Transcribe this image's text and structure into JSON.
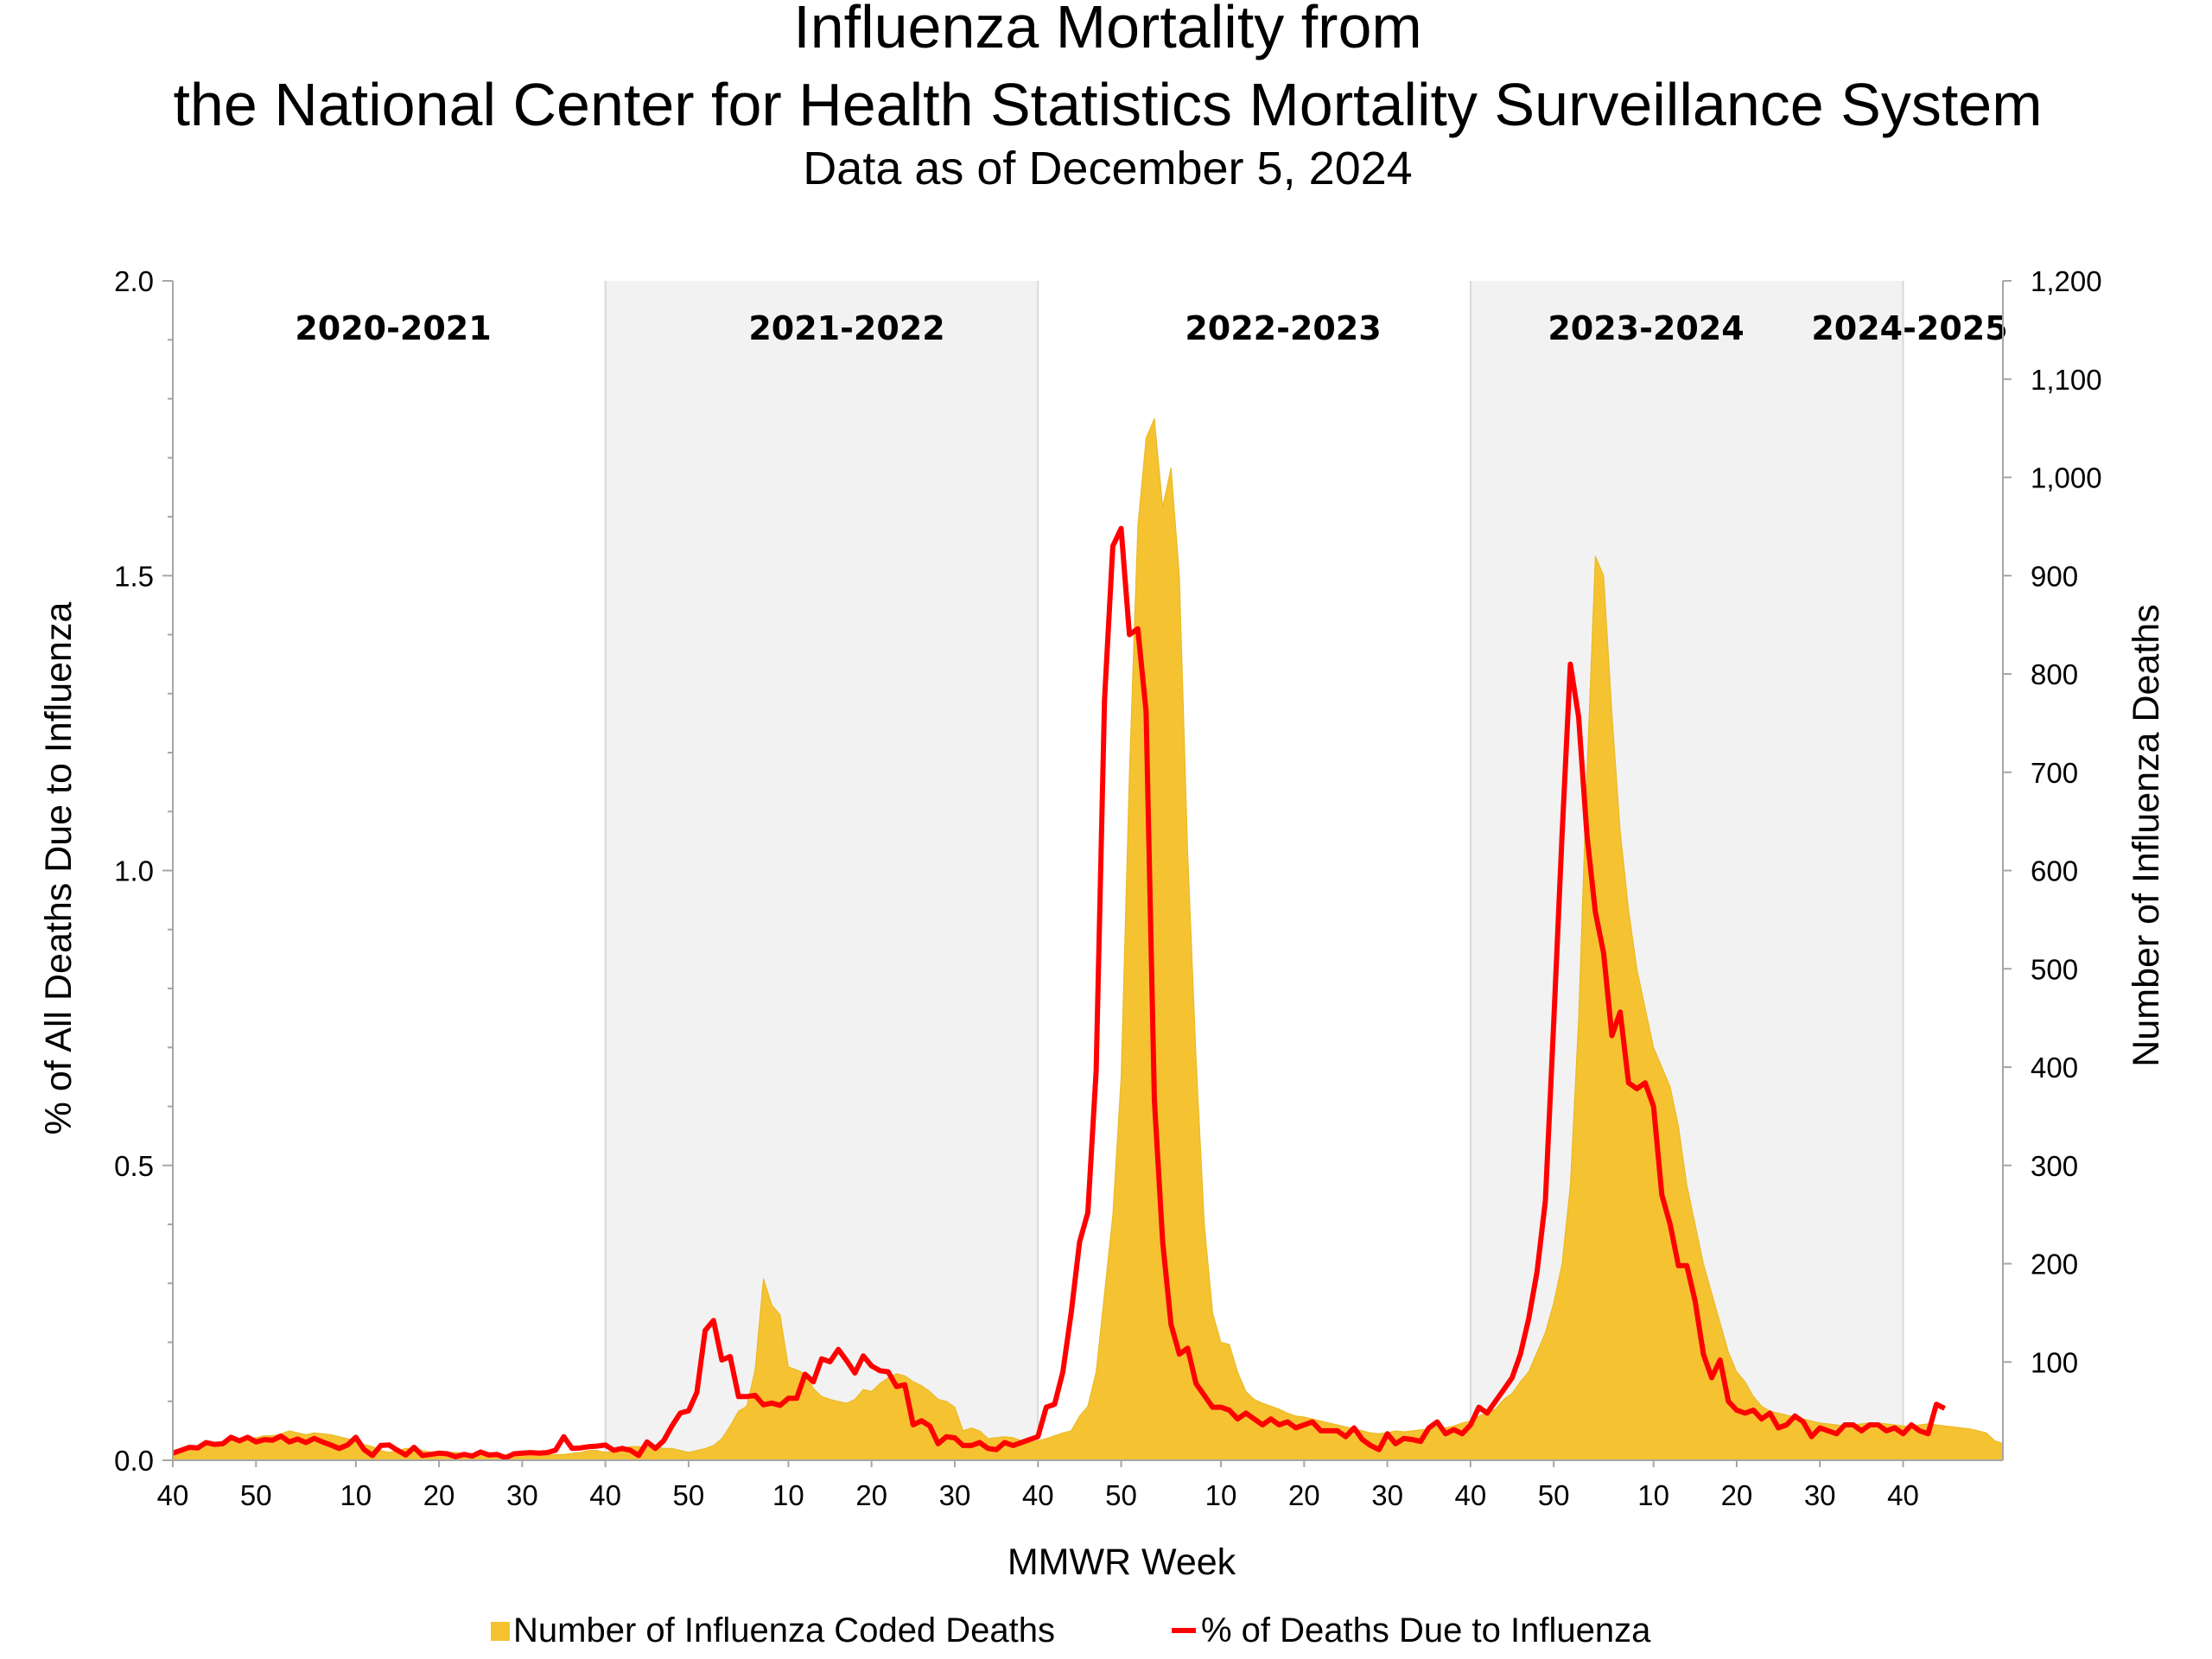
{
  "title": {
    "line1": "Influenza Mortality from",
    "line2": "the National Center for Health Statistics Mortality Surveillance System",
    "subtitle": "Data as of December 5, 2024"
  },
  "colors": {
    "area": "#F5C232",
    "area_edge": "#E8B820",
    "line": "#FF0000",
    "shade": "#F2F2F2",
    "axis": "#A6A6A6"
  },
  "legend": {
    "area_label": "Number of Influenza Coded Deaths",
    "line_label": "% of Deaths Due to Influenza"
  },
  "chart_data": {
    "type": "area",
    "xlabel": "MMWR Week",
    "ylabel_left": "% of All Deaths Due to Influenza",
    "ylabel_right": "Number of Influenza Deaths",
    "ylim_left": [
      0,
      2.0
    ],
    "ylim_right": [
      0,
      1200
    ],
    "yticks_left": [
      "0.0",
      "0.5",
      "1.0",
      "1.5",
      "2.0"
    ],
    "yticks_right": [
      "100",
      "200",
      "300",
      "400",
      "500",
      "600",
      "700",
      "800",
      "900",
      "1,000",
      "1,100",
      "1,200"
    ],
    "x_tick_labels": [
      "40",
      "50",
      "10",
      "20",
      "30",
      "40",
      "50",
      "10",
      "20",
      "30",
      "40",
      "50",
      "10",
      "20",
      "30",
      "40",
      "50",
      "10",
      "20",
      "30",
      "40"
    ],
    "grid": false,
    "legend_position": "bottom",
    "seasons": [
      "2020-2021",
      "2021-2022",
      "2022-2023",
      "2023-2024",
      "2024-2025"
    ],
    "series": [
      {
        "name": "Number of Influenza Coded Deaths",
        "axis": "right",
        "values": [
          8,
          10,
          12,
          13,
          15,
          18,
          18,
          20,
          21,
          22,
          23,
          25,
          25,
          27,
          30,
          28,
          26,
          28,
          27,
          26,
          24,
          22,
          20,
          16,
          14,
          10,
          8,
          10,
          12,
          12,
          10,
          8,
          8,
          8,
          8,
          7,
          7,
          7,
          7,
          6,
          6,
          6,
          6,
          6,
          5,
          5,
          6,
          6,
          7,
          8,
          10,
          10,
          8,
          9,
          12,
          14,
          14,
          13,
          14,
          12,
          12,
          10,
          8,
          10,
          12,
          15,
          22,
          35,
          50,
          55,
          92,
          185,
          158,
          148,
          95,
          92,
          88,
          73,
          65,
          62,
          60,
          58,
          62,
          72,
          70,
          78,
          84,
          88,
          86,
          80,
          76,
          70,
          62,
          60,
          54,
          30,
          33,
          30,
          22,
          23,
          24,
          23,
          20,
          18,
          20,
          22,
          25,
          28,
          30,
          45,
          55,
          90,
          170,
          250,
          390,
          700,
          950,
          1040,
          1060,
          970,
          1010,
          900,
          620,
          410,
          240,
          150,
          120,
          118,
          90,
          70,
          62,
          58,
          55,
          52,
          48,
          45,
          44,
          42,
          40,
          38,
          36,
          34,
          32,
          30,
          28,
          27,
          28,
          30,
          29,
          30,
          31,
          32,
          34,
          33,
          35,
          38,
          40,
          45,
          48,
          52,
          62,
          68,
          80,
          90,
          110,
          130,
          160,
          200,
          280,
          450,
          700,
          920,
          900,
          760,
          640,
          560,
          500,
          460,
          420,
          400,
          380,
          340,
          280,
          240,
          200,
          170,
          140,
          110,
          90,
          80,
          65,
          55,
          50,
          48,
          46,
          44,
          42,
          40,
          38,
          37,
          36,
          35,
          36,
          37,
          38,
          38,
          37,
          36,
          35,
          34,
          36,
          37,
          36,
          35,
          34,
          33,
          32,
          30,
          28,
          20,
          17
        ]
      },
      {
        "name": "% of Deaths Due to Influenza",
        "axis": "left",
        "values": [
          0.012,
          0.017,
          0.022,
          0.021,
          0.03,
          0.027,
          0.028,
          0.039,
          0.033,
          0.039,
          0.031,
          0.035,
          0.034,
          0.041,
          0.031,
          0.036,
          0.03,
          0.037,
          0.031,
          0.026,
          0.02,
          0.026,
          0.039,
          0.018,
          0.008,
          0.025,
          0.026,
          0.017,
          0.009,
          0.022,
          0.008,
          0.01,
          0.012,
          0.011,
          0.006,
          0.01,
          0.007,
          0.014,
          0.009,
          0.01,
          0.004,
          0.011,
          0.012,
          0.013,
          0.012,
          0.013,
          0.017,
          0.04,
          0.02,
          0.021,
          0.023,
          0.024,
          0.026,
          0.017,
          0.02,
          0.017,
          0.008,
          0.031,
          0.02,
          0.033,
          0.058,
          0.08,
          0.084,
          0.115,
          0.22,
          0.237,
          0.17,
          0.176,
          0.108,
          0.108,
          0.11,
          0.094,
          0.097,
          0.093,
          0.105,
          0.105,
          0.146,
          0.133,
          0.172,
          0.167,
          0.188,
          0.169,
          0.148,
          0.177,
          0.16,
          0.152,
          0.15,
          0.125,
          0.128,
          0.06,
          0.067,
          0.058,
          0.028,
          0.04,
          0.038,
          0.025,
          0.025,
          0.03,
          0.02,
          0.018,
          0.03,
          0.025,
          0.03,
          0.035,
          0.04,
          0.09,
          0.095,
          0.15,
          0.25,
          0.37,
          0.42,
          0.66,
          1.29,
          1.55,
          1.58,
          1.4,
          1.41,
          1.27,
          0.61,
          0.37,
          0.23,
          0.18,
          0.19,
          0.13,
          0.11,
          0.09,
          0.09,
          0.085,
          0.07,
          0.08,
          0.07,
          0.06,
          0.07,
          0.06,
          0.065,
          0.055,
          0.06,
          0.065,
          0.05,
          0.05,
          0.05,
          0.04,
          0.055,
          0.035,
          0.025,
          0.018,
          0.045,
          0.028,
          0.037,
          0.035,
          0.032,
          0.055,
          0.065,
          0.045,
          0.052,
          0.045,
          0.06,
          0.09,
          0.08,
          0.1,
          0.12,
          0.14,
          0.18,
          0.24,
          0.32,
          0.44,
          0.74,
          1.06,
          1.35,
          1.26,
          1.06,
          0.93,
          0.86,
          0.72,
          0.76,
          0.64,
          0.63,
          0.64,
          0.6,
          0.45,
          0.4,
          0.33,
          0.33,
          0.27,
          0.18,
          0.14,
          0.17,
          0.1,
          0.085,
          0.08,
          0.085,
          0.07,
          0.08,
          0.055,
          0.06,
          0.075,
          0.065,
          0.04,
          0.055,
          0.05,
          0.045,
          0.06,
          0.06,
          0.05,
          0.06,
          0.06,
          0.05,
          0.055,
          0.045,
          0.06,
          0.05,
          0.045,
          0.095,
          0.088
        ]
      }
    ]
  }
}
